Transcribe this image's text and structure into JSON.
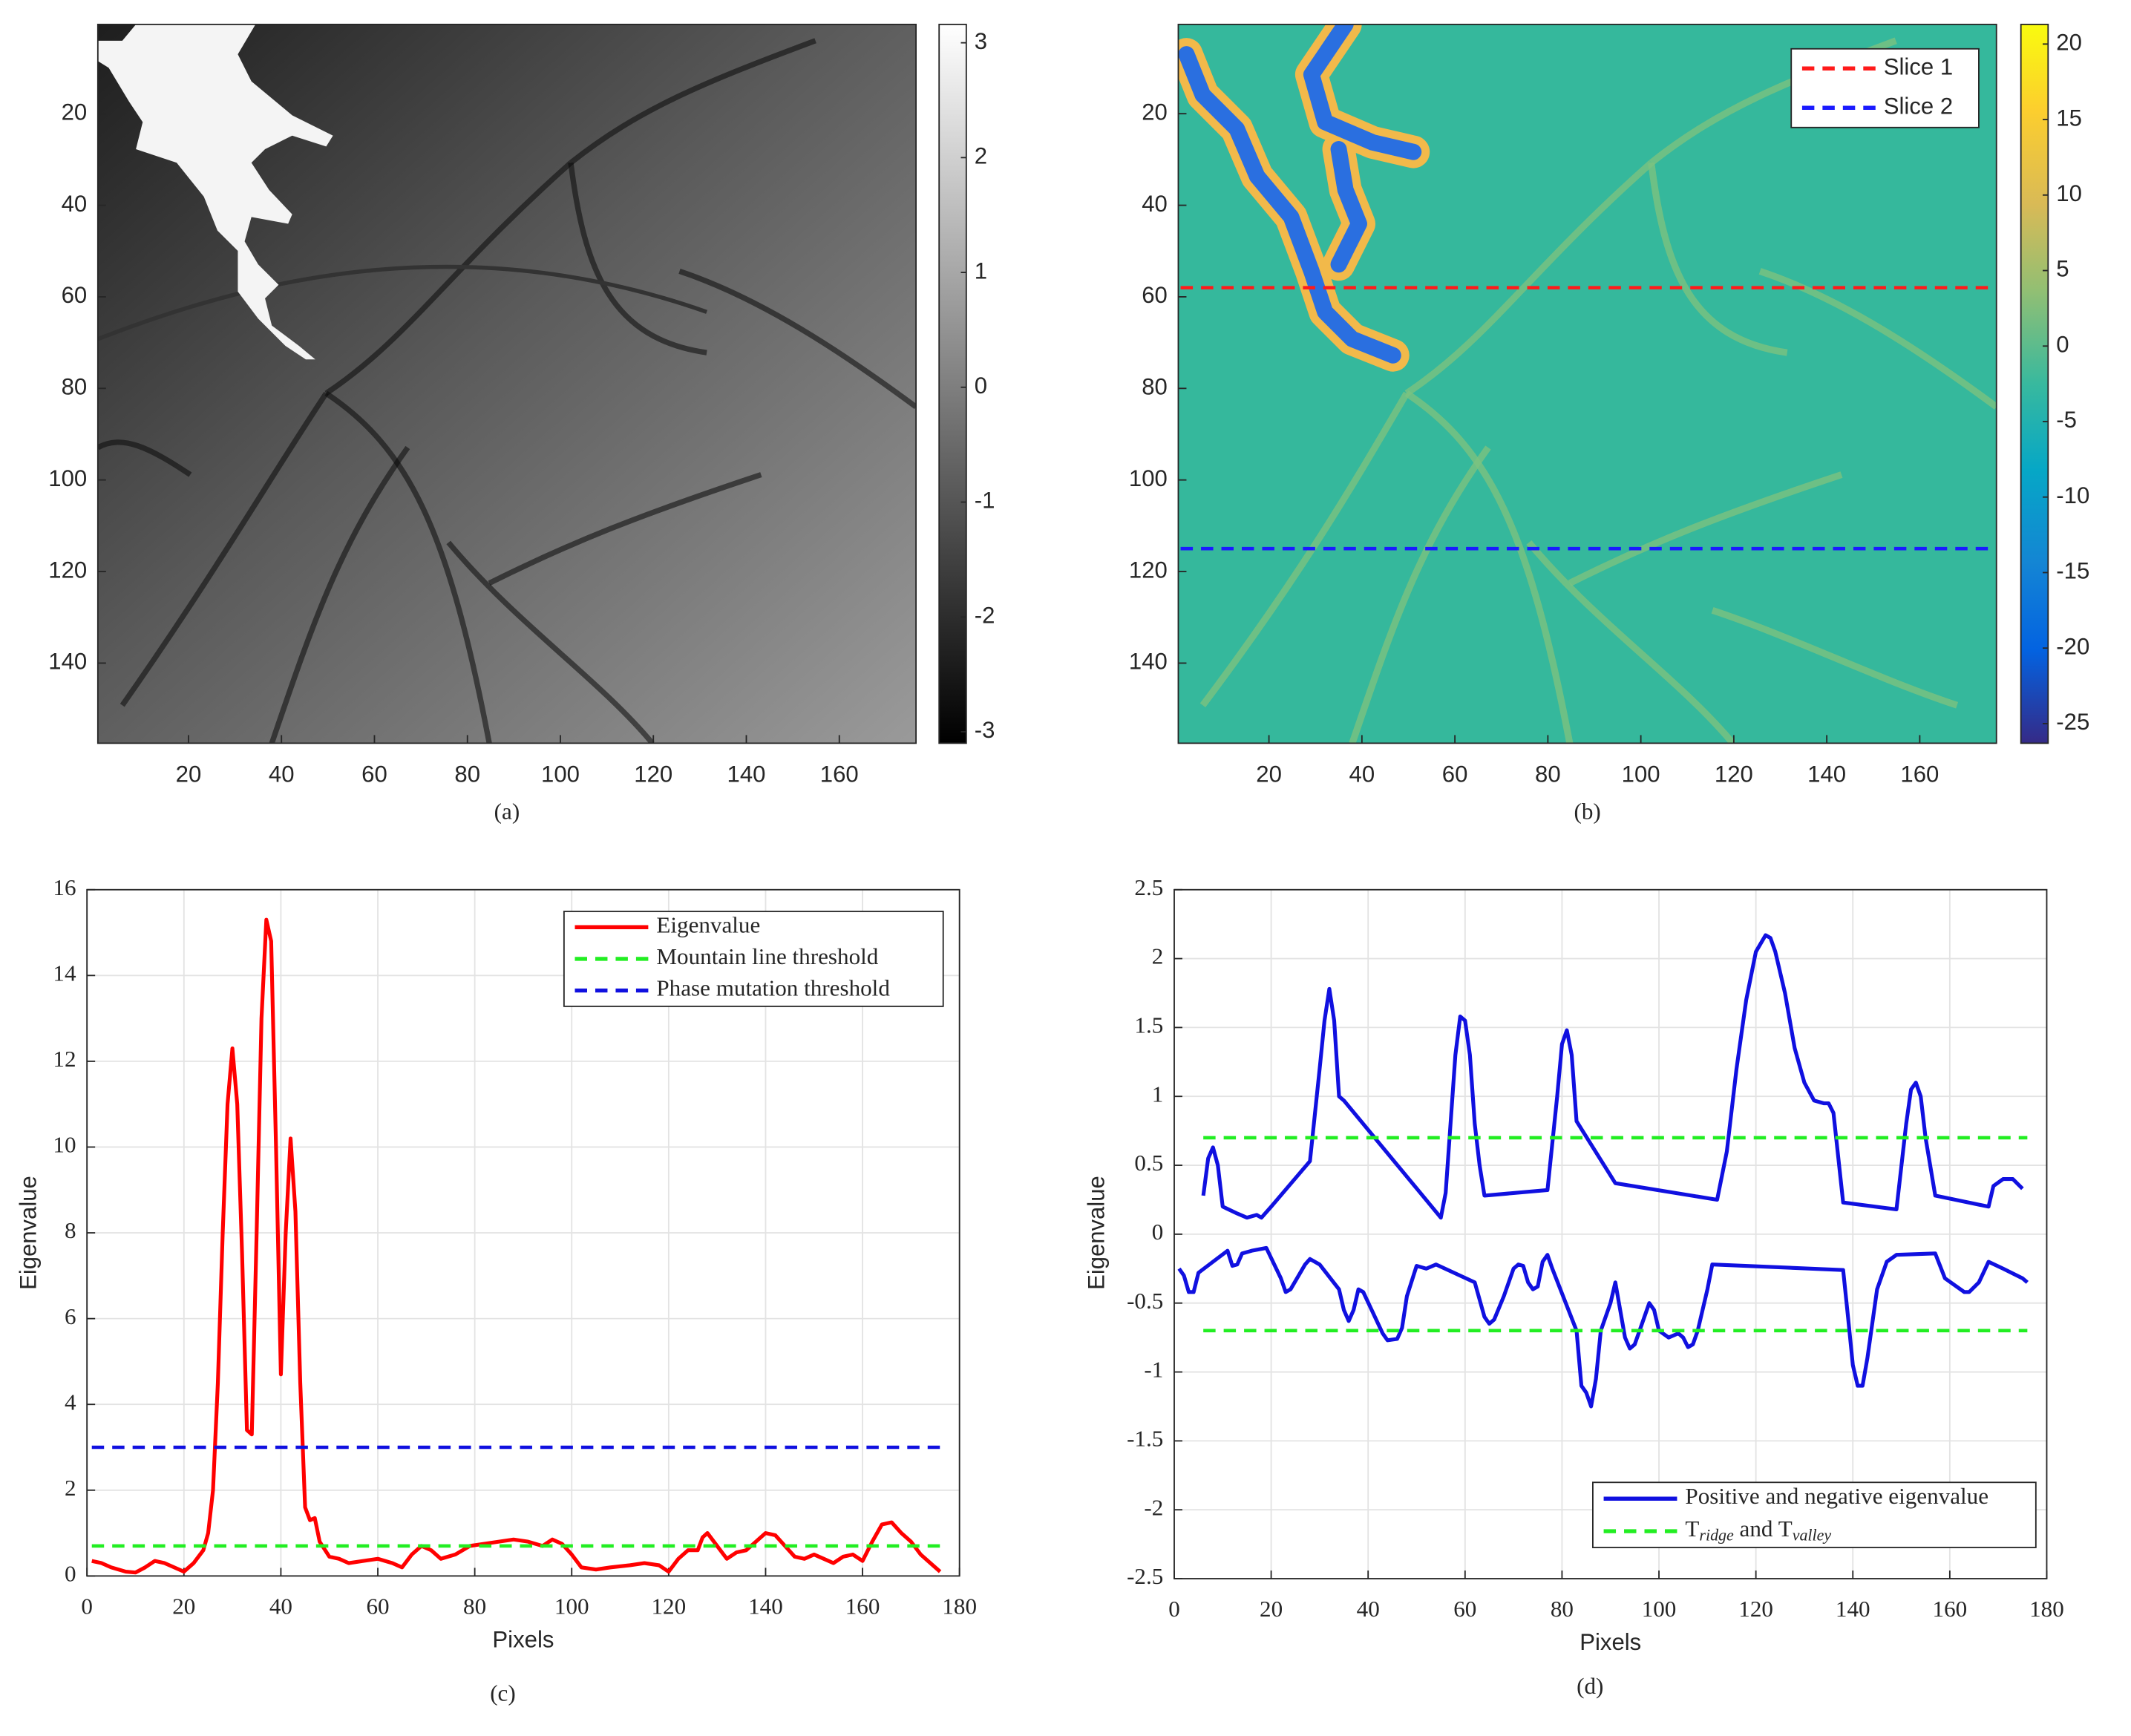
{
  "chart_data": [
    {
      "type": "heatmap",
      "label": "(a)",
      "xlim": [
        0.5,
        176.5
      ],
      "ylim": [
        157.5,
        0.5
      ],
      "xticks": [
        20,
        40,
        60,
        80,
        100,
        120,
        140,
        160
      ],
      "yticks": [
        20,
        40,
        60,
        80,
        100,
        120,
        140
      ],
      "colorbar": {
        "colormap": "gray",
        "clim": [
          -3.1,
          3.16
        ],
        "ticks": [
          -3,
          -2,
          -1,
          0,
          1,
          2,
          3
        ]
      }
    },
    {
      "type": "heatmap",
      "label": "(b)",
      "xlim": [
        0.5,
        176.5
      ],
      "ylim": [
        157.5,
        0.5
      ],
      "xticks": [
        20,
        40,
        60,
        80,
        100,
        120,
        140,
        160
      ],
      "yticks": [
        20,
        40,
        60,
        80,
        100,
        120,
        140
      ],
      "colorbar": {
        "colormap": "parula",
        "clim": [
          -26.3,
          21.3
        ],
        "ticks": [
          -25,
          -20,
          -15,
          -10,
          -5,
          0,
          5,
          10,
          15,
          20
        ]
      },
      "legend": "upper right",
      "series": [
        {
          "name": "Slice 1",
          "color": "#ff1a1a",
          "line_style": "dashed",
          "x": [
            1,
            176
          ],
          "values": [
            58,
            58
          ]
        },
        {
          "name": "Slice 2",
          "color": "#1a1aff",
          "line_style": "dashed",
          "x": [
            1,
            176
          ],
          "values": [
            115,
            115
          ]
        }
      ]
    },
    {
      "type": "line",
      "label": "(c)",
      "xlabel": "Pixels",
      "ylabel": "Eigenvalue",
      "xlim": [
        0,
        180
      ],
      "ylim": [
        0,
        16
      ],
      "xticks": [
        0,
        20,
        40,
        60,
        80,
        100,
        120,
        140,
        160,
        180
      ],
      "yticks": [
        0,
        2,
        4,
        6,
        8,
        10,
        12,
        14,
        16
      ],
      "grid": true,
      "legend": "upper right",
      "series": [
        {
          "name": "Eigenvalue",
          "color": "#ff0000",
          "line_style": "solid",
          "x": [
            1,
            3,
            5,
            8,
            10,
            12,
            14,
            16,
            18,
            20,
            22,
            24,
            25,
            26,
            27,
            28,
            29,
            30,
            31,
            32,
            33,
            34,
            35,
            36,
            37,
            38,
            39,
            40,
            41,
            42,
            43,
            44,
            45,
            46,
            47,
            48,
            50,
            52,
            54,
            57,
            60,
            63,
            65,
            67,
            69,
            71,
            73,
            76,
            79,
            82,
            85,
            88,
            91,
            94,
            96,
            98,
            100,
            102,
            105,
            108,
            112,
            115,
            118,
            120,
            122,
            124,
            126,
            127,
            128,
            130,
            132,
            134,
            136,
            138,
            140,
            142,
            144,
            146,
            148,
            150,
            152,
            154,
            156,
            158,
            160,
            162,
            164,
            166,
            168,
            170,
            172,
            174,
            176
          ],
          "values": [
            0.35,
            0.3,
            0.2,
            0.1,
            0.08,
            0.2,
            0.35,
            0.3,
            0.2,
            0.1,
            0.3,
            0.6,
            1.0,
            2.0,
            4.5,
            8,
            11,
            12.3,
            11,
            7.5,
            3.4,
            3.3,
            8,
            13,
            15.3,
            14.8,
            10,
            4.7,
            8,
            10.2,
            8.5,
            4.5,
            1.6,
            1.3,
            1.35,
            0.8,
            0.45,
            0.4,
            0.3,
            0.35,
            0.4,
            0.3,
            0.2,
            0.5,
            0.7,
            0.6,
            0.4,
            0.5,
            0.7,
            0.75,
            0.8,
            0.85,
            0.8,
            0.7,
            0.85,
            0.75,
            0.5,
            0.2,
            0.15,
            0.2,
            0.25,
            0.3,
            0.25,
            0.1,
            0.4,
            0.6,
            0.6,
            0.9,
            1.0,
            0.7,
            0.4,
            0.55,
            0.6,
            0.8,
            1.0,
            0.95,
            0.7,
            0.45,
            0.4,
            0.5,
            0.4,
            0.3,
            0.45,
            0.5,
            0.35,
            0.8,
            1.2,
            1.25,
            1.0,
            0.8,
            0.5,
            0.3,
            0.1
          ]
        },
        {
          "name": "Mountain line threshold",
          "color": "#22ee22",
          "line_style": "dashed",
          "x": [
            1,
            176
          ],
          "values": [
            0.7,
            0.7
          ]
        },
        {
          "name": "Phase mutation threshold",
          "color": "#1010e0",
          "line_style": "dashed",
          "x": [
            1,
            176
          ],
          "values": [
            3,
            3
          ]
        }
      ]
    },
    {
      "type": "line",
      "label": "(d)",
      "xlabel": "Pixels",
      "ylabel": "Eigenvalue",
      "xlim": [
        0,
        180
      ],
      "ylim": [
        -2.5,
        2.5
      ],
      "xticks": [
        0,
        20,
        40,
        60,
        80,
        100,
        120,
        140,
        160,
        180
      ],
      "yticks": [
        -2.5,
        -2,
        -1.5,
        -1,
        -0.5,
        0,
        0.5,
        1,
        1.5,
        2,
        2.5
      ],
      "grid": true,
      "legend": "lower right",
      "series": [
        {
          "name": "Positive and negative eigenvalue",
          "color": "#1010e0",
          "line_style": "solid",
          "x": [
            6,
            7,
            8,
            9,
            10,
            13,
            15,
            17,
            18,
            20,
            28,
            30,
            31,
            32,
            33,
            34,
            35,
            55,
            56,
            57,
            58,
            59,
            60,
            61,
            62,
            63,
            64,
            77,
            79,
            80,
            81,
            82,
            83,
            91,
            112,
            114,
            116,
            118,
            120,
            122,
            123,
            124,
            126,
            128,
            130,
            132,
            134,
            135,
            136,
            138,
            149,
            151,
            152,
            153,
            154,
            155,
            157,
            168,
            169,
            171,
            173,
            175
          ],
          "values": [
            0.28,
            0.55,
            0.63,
            0.5,
            0.2,
            0.15,
            0.12,
            0.14,
            0.12,
            0.2,
            0.53,
            1.2,
            1.55,
            1.78,
            1.55,
            1.0,
            0.97,
            0.12,
            0.3,
            0.8,
            1.3,
            1.58,
            1.55,
            1.3,
            0.8,
            0.5,
            0.28,
            0.32,
            1.0,
            1.38,
            1.48,
            1.3,
            0.82,
            0.37,
            0.25,
            0.6,
            1.2,
            1.7,
            2.05,
            2.17,
            2.15,
            2.05,
            1.75,
            1.35,
            1.1,
            0.97,
            0.95,
            0.95,
            0.88,
            0.23,
            0.18,
            0.8,
            1.05,
            1.1,
            1.0,
            0.7,
            0.28,
            0.2,
            0.35,
            0.4,
            0.4,
            0.33
          ]
        },
        {
          "color": "#1010e0",
          "line_style": "solid",
          "x": [
            1,
            2,
            3,
            4,
            5,
            8,
            11,
            12,
            13,
            14,
            16,
            19,
            22,
            23,
            24,
            27,
            28,
            30,
            34,
            35,
            36,
            37,
            38,
            39,
            41,
            43,
            44,
            46,
            47,
            48,
            50,
            52,
            54,
            62,
            64,
            65,
            66,
            68,
            70,
            71,
            72,
            73,
            74,
            75,
            76,
            77,
            78,
            83,
            84,
            85,
            86,
            87,
            88,
            90,
            91,
            92,
            93,
            94,
            95,
            96,
            97,
            98,
            99,
            100,
            102,
            104,
            105,
            106,
            107,
            108,
            110,
            111,
            138,
            139,
            140,
            141,
            142,
            143,
            145,
            147,
            149,
            157,
            159,
            163,
            164,
            166,
            168,
            171,
            175,
            176
          ],
          "values": [
            -0.25,
            -0.3,
            -0.42,
            -0.42,
            -0.28,
            -0.2,
            -0.12,
            -0.23,
            -0.22,
            -0.14,
            -0.12,
            -0.1,
            -0.32,
            -0.42,
            -0.4,
            -0.22,
            -0.18,
            -0.22,
            -0.4,
            -0.55,
            -0.63,
            -0.55,
            -0.4,
            -0.42,
            -0.57,
            -0.72,
            -0.77,
            -0.76,
            -0.68,
            -0.45,
            -0.23,
            -0.25,
            -0.22,
            -0.35,
            -0.6,
            -0.65,
            -0.62,
            -0.45,
            -0.25,
            -0.22,
            -0.23,
            -0.35,
            -0.4,
            -0.38,
            -0.2,
            -0.15,
            -0.25,
            -0.7,
            -1.1,
            -1.15,
            -1.25,
            -1.05,
            -0.7,
            -0.5,
            -0.35,
            -0.55,
            -0.75,
            -0.83,
            -0.8,
            -0.7,
            -0.6,
            -0.5,
            -0.55,
            -0.7,
            -0.75,
            -0.72,
            -0.75,
            -0.82,
            -0.8,
            -0.7,
            -0.4,
            -0.22,
            -0.26,
            -0.6,
            -0.95,
            -1.1,
            -1.1,
            -0.9,
            -0.4,
            -0.2,
            -0.15,
            -0.14,
            -0.32,
            -0.42,
            -0.42,
            -0.35,
            -0.2,
            -0.25,
            -0.32,
            -0.35
          ]
        },
        {
          "name": "T_{ridge} and T_{valley}",
          "color": "#22ee22",
          "line_style": "dashed",
          "x": [
            6,
            176
          ],
          "values": [
            0.7,
            0.7
          ]
        },
        {
          "color": "#22ee22",
          "line_style": "dashed",
          "x": [
            6,
            176
          ],
          "values": [
            -0.7,
            -0.7
          ]
        }
      ]
    }
  ]
}
